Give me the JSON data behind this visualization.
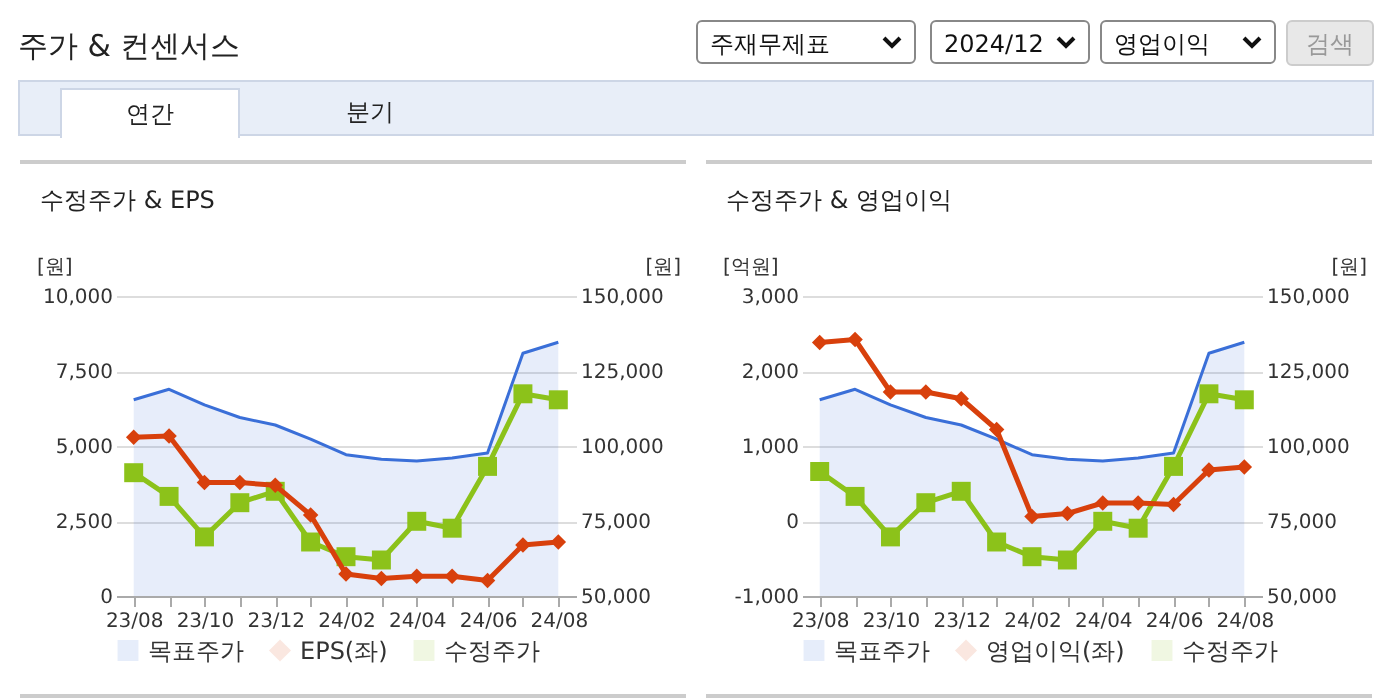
{
  "chart_data": [
    {
      "type": "other",
      "title": "주가 & 컨센서스",
      "annotations": [
        "주재무제표",
        "2024/12",
        "영업이익",
        "검색",
        "연간",
        "분기"
      ]
    },
    {
      "type": "line",
      "title": "수정주가 & EPS",
      "ylabel": "[원]",
      "y2label": "[원]",
      "categories": [
        "23/08",
        null,
        "23/10",
        null,
        "23/12",
        null,
        "24/02",
        null,
        "24/04",
        null,
        "24/06",
        null,
        "24/08"
      ],
      "ylim": [
        0,
        10000
      ],
      "yticks": [
        0,
        {
          "value": 2500,
          "label": "2,500"
        },
        {
          "value": 5000,
          "label": "5,000"
        },
        {
          "value": 7500,
          "label": "7,500"
        },
        {
          "value": 10000,
          "label": "10,000"
        }
      ],
      "y2lim": [
        50000,
        150000
      ],
      "y2ticks": [
        {
          "value": 50000,
          "label": "50,000"
        },
        {
          "value": 75000,
          "label": "75,000"
        },
        {
          "value": 100000,
          "label": "100,000"
        },
        {
          "value": 125000,
          "label": "125,000"
        },
        {
          "value": 150000,
          "label": "150,000"
        }
      ],
      "grid": "y",
      "legend": "bottom",
      "series": [
        {
          "name": "목표주가",
          "type": "area",
          "axis": "y2",
          "color": "#3a6fd8",
          "marker": "none",
          "values": [
            115400,
            118900,
            113700,
            109500,
            107000,
            102300,
            97100,
            95600,
            95000,
            96000,
            97700,
            130900,
            134600
          ]
        },
        {
          "name": "EPS(좌)",
          "type": "line",
          "color": "#d8400c",
          "marker": "diamond",
          "values": [
            5290,
            5330,
            3780,
            3780,
            3690,
            2700,
            730,
            580,
            660,
            660,
            520,
            1700,
            1800
          ]
        },
        {
          "name": "수정주가",
          "type": "line",
          "axis": "y2",
          "color": "#8cc21a",
          "marker": "square",
          "values": [
            91100,
            83200,
            69700,
            81100,
            84900,
            68000,
            63100,
            62000,
            74900,
            72600,
            93200,
            117400,
            115400
          ]
        }
      ]
    },
    {
      "type": "line",
      "title": "수정주가 & 영업이익",
      "ylabel": "[억원]",
      "y2label": "[원]",
      "categories": [
        "23/08",
        null,
        "23/10",
        null,
        "23/12",
        null,
        "24/02",
        null,
        "24/04",
        null,
        "24/06",
        null,
        "24/08"
      ],
      "ylim": [
        -1000,
        3000
      ],
      "yticks": [
        {
          "value": -1000,
          "label": "-1,000"
        },
        0,
        {
          "value": 1000,
          "label": "1,000"
        },
        {
          "value": 2000,
          "label": "2,000"
        },
        {
          "value": 3000,
          "label": "3,000"
        }
      ],
      "y2lim": [
        50000,
        150000
      ],
      "y2ticks": [
        {
          "value": 50000,
          "label": "50,000"
        },
        {
          "value": 75000,
          "label": "75,000"
        },
        {
          "value": 100000,
          "label": "100,000"
        },
        {
          "value": 125000,
          "label": "125,000"
        },
        {
          "value": 150000,
          "label": "150,000"
        }
      ],
      "grid": "y",
      "legend": "bottom",
      "series": [
        {
          "name": "목표주가",
          "type": "area",
          "axis": "y2",
          "color": "#3a6fd8",
          "marker": "none",
          "values": [
            115400,
            118900,
            113700,
            109500,
            107000,
            102300,
            97100,
            95600,
            95000,
            96000,
            97700,
            130900,
            134600
          ]
        },
        {
          "name": "영업이익(좌)",
          "type": "line",
          "color": "#d8400c",
          "marker": "diamond",
          "values": [
            2380,
            2420,
            1720,
            1720,
            1630,
            1220,
            60,
            100,
            240,
            240,
            220,
            680,
            720
          ]
        },
        {
          "name": "수정주가",
          "type": "line",
          "axis": "y2",
          "color": "#8cc21a",
          "marker": "square",
          "values": [
            91500,
            83200,
            69700,
            81100,
            84900,
            68000,
            63100,
            62000,
            74900,
            72600,
            93200,
            117400,
            115400
          ]
        }
      ]
    }
  ]
}
